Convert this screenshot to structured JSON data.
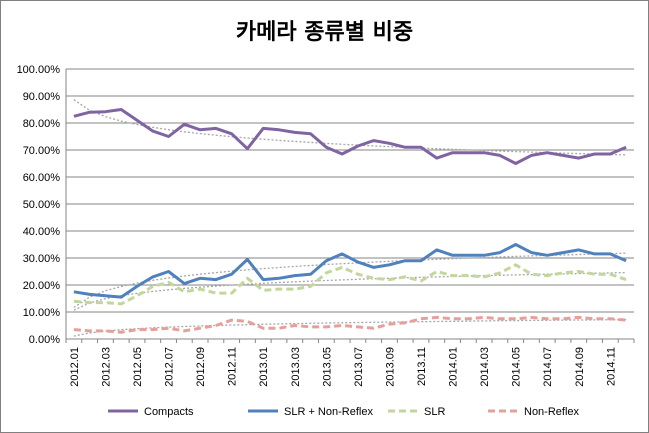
{
  "chart_data": {
    "type": "line",
    "title": "카메라 종류별 비중",
    "xlabel": "",
    "ylabel": "",
    "ylim": [
      0,
      100
    ],
    "y_ticks": [
      "0.00%",
      "10.00%",
      "20.00%",
      "30.00%",
      "40.00%",
      "50.00%",
      "60.00%",
      "70.00%",
      "80.00%",
      "90.00%",
      "100.00%"
    ],
    "x_tick_labels": [
      "2012.01",
      "2012.03",
      "2012.05",
      "2012.07",
      "2012.09",
      "2012.11",
      "2013.01",
      "2013.03",
      "2013.05",
      "2013.07",
      "2013.09",
      "2013.11",
      "2014.01",
      "2014.03",
      "2014.05",
      "2014.07",
      "2014.09",
      "2014.11"
    ],
    "x": [
      "2012.01",
      "2012.02",
      "2012.03",
      "2012.04",
      "2012.05",
      "2012.06",
      "2012.07",
      "2012.08",
      "2012.09",
      "2012.10",
      "2012.11",
      "2012.12",
      "2013.01",
      "2013.02",
      "2013.03",
      "2013.04",
      "2013.05",
      "2013.06",
      "2013.07",
      "2013.08",
      "2013.09",
      "2013.10",
      "2013.11",
      "2013.12",
      "2014.01",
      "2014.02",
      "2014.03",
      "2014.04",
      "2014.05",
      "2014.06",
      "2014.07",
      "2014.08",
      "2014.09",
      "2014.10",
      "2014.11",
      "2014.12"
    ],
    "grid": "horizontal",
    "legend": "bottom",
    "trendlines": true,
    "series": [
      {
        "name": "Compacts",
        "color": "#8064a2",
        "style": "solid",
        "values": [
          82.5,
          84.0,
          84.2,
          85.0,
          81.0,
          77.0,
          75.0,
          79.5,
          77.5,
          78.0,
          76.0,
          70.5,
          78.0,
          77.5,
          76.5,
          76.0,
          71.0,
          68.5,
          71.5,
          73.5,
          72.5,
          71.0,
          71.0,
          67.0,
          69.0,
          69.0,
          69.0,
          68.0,
          65.0,
          68.0,
          69.0,
          68.0,
          67.0,
          68.5,
          68.5,
          71.0
        ]
      },
      {
        "name": "SLR + Non-Reflex",
        "color": "#4f81bd",
        "style": "solid",
        "values": [
          17.5,
          16.5,
          16.0,
          15.5,
          19.5,
          23.0,
          25.0,
          20.5,
          22.5,
          22.0,
          24.0,
          29.5,
          22.0,
          22.5,
          23.5,
          24.0,
          29.0,
          31.5,
          28.5,
          26.5,
          27.5,
          29.0,
          29.0,
          33.0,
          31.0,
          31.0,
          31.0,
          32.0,
          35.0,
          32.0,
          31.0,
          32.0,
          33.0,
          31.5,
          31.5,
          29.0
        ]
      },
      {
        "name": "SLR",
        "color": "#c3d69b",
        "style": "dashed",
        "values": [
          14.0,
          13.5,
          13.5,
          13.0,
          16.0,
          19.5,
          21.0,
          17.5,
          18.5,
          17.0,
          17.0,
          22.5,
          18.0,
          18.5,
          18.5,
          19.5,
          24.5,
          26.5,
          24.0,
          22.5,
          22.0,
          23.0,
          21.5,
          25.0,
          23.5,
          23.5,
          23.0,
          24.5,
          27.5,
          24.0,
          23.5,
          24.5,
          25.0,
          24.0,
          24.0,
          22.0
        ]
      },
      {
        "name": "Non-Reflex",
        "color": "#e6a09c",
        "style": "dashed",
        "values": [
          3.5,
          3.0,
          3.0,
          2.5,
          3.5,
          3.5,
          4.0,
          3.0,
          4.0,
          5.0,
          7.0,
          6.5,
          4.0,
          4.0,
          5.0,
          4.5,
          4.5,
          5.0,
          4.5,
          4.0,
          5.5,
          6.0,
          7.5,
          8.0,
          7.5,
          7.5,
          8.0,
          7.5,
          7.5,
          8.0,
          7.5,
          7.5,
          8.0,
          7.5,
          7.5,
          7.0
        ]
      }
    ]
  }
}
